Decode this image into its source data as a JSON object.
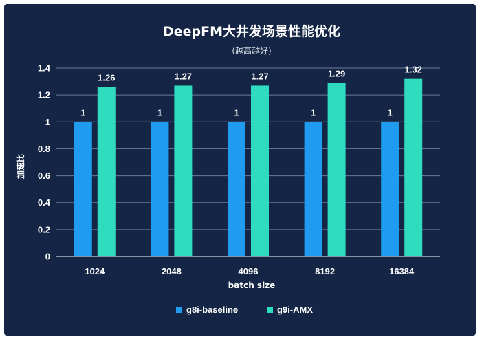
{
  "chart_data": {
    "type": "bar",
    "title": "DeepFM大井发场景性能优化",
    "subtitle": "(越高越好)",
    "xlabel": "batch size",
    "ylabel": "加速比",
    "categories": [
      "1024",
      "2048",
      "4096",
      "8192",
      "16384"
    ],
    "series": [
      {
        "name": "g8i-baseline",
        "color": "#1f9cf0",
        "values": [
          1,
          1,
          1,
          1,
          1
        ],
        "labels": [
          "1",
          "1",
          "1",
          "1",
          "1"
        ]
      },
      {
        "name": "g9i-AMX",
        "color": "#2fdcc0",
        "values": [
          1.26,
          1.27,
          1.27,
          1.29,
          1.32
        ],
        "labels": [
          "1.26",
          "1.27",
          "1.27",
          "1.29",
          "1.32"
        ]
      }
    ],
    "ylim": [
      0,
      1.4
    ],
    "yticks": [
      0,
      0.2,
      0.4,
      0.6,
      0.8,
      1,
      1.2,
      1.4
    ],
    "ytick_labels": [
      "0",
      "0.2",
      "0.4",
      "0.6",
      "0.8",
      "1",
      "1.2",
      "1.4"
    ],
    "grid": true,
    "legend_position": "bottom",
    "background_color": "#152545"
  }
}
